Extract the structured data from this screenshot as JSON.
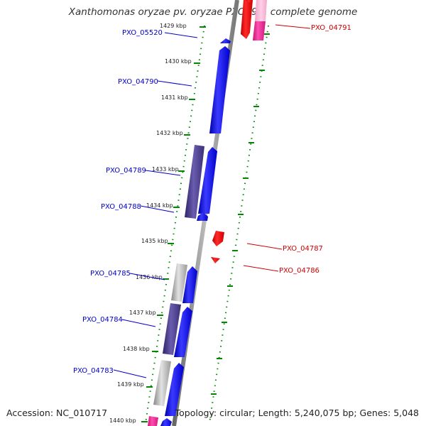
{
  "title": "Xanthomonas oryzae pv. oryzae PXO99A, complete genome",
  "accession_text": "Accession: NC_010717",
  "topology_text": "Topology: circular; Length: 5,240,075 bp; Genes: 5,048",
  "colors": {
    "backbone": "#888888",
    "forward_gene": "#0000ee",
    "reverse_gene": "#ee0000",
    "pink_gene": "#ee1a8c",
    "dark_gene": "#4a3d8a",
    "gray_gene": "#aaaaaa",
    "tick": "#008800",
    "left_label": "#0000cc",
    "right_label": "#cc0000"
  },
  "kbp_ticks": [
    {
      "label": "1429 kbp"
    },
    {
      "label": "1430 kbp"
    },
    {
      "label": "1431 kbp"
    },
    {
      "label": "1432 kbp"
    },
    {
      "label": "1433 kbp"
    },
    {
      "label": "1434 kbp"
    },
    {
      "label": "1435 kbp"
    },
    {
      "label": "1436 kbp"
    },
    {
      "label": "1437 kbp"
    },
    {
      "label": "1438 kbp"
    },
    {
      "label": "1439 kbp"
    },
    {
      "label": "1440 kbp"
    }
  ],
  "left_labels": [
    "PXO_05520",
    "PXO_04790",
    "PXO_04789",
    "PXO_04788",
    "PXO_04785",
    "PXO_04784",
    "PXO_04783"
  ],
  "right_labels": [
    "PXO_04791",
    "PXO_04787",
    "PXO_04786"
  ]
}
